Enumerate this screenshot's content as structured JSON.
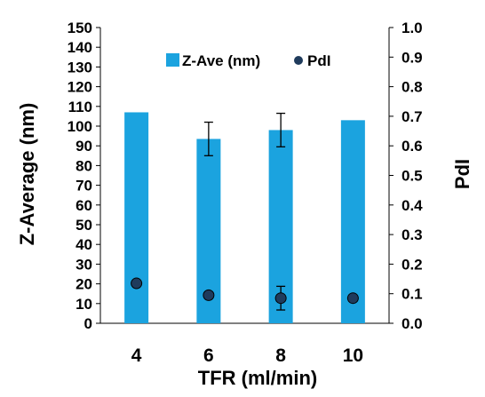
{
  "chart_data": {
    "type": "bar",
    "title": "",
    "xlabel": "TFR (ml/min)",
    "ylabel": "Z-Average (nm)",
    "y2label": "PdI",
    "categories": [
      "4",
      "6",
      "8",
      "10"
    ],
    "ylim": [
      0,
      150
    ],
    "ytick_step": 10,
    "y2lim": [
      0.0,
      1.0
    ],
    "y2tick_step": 0.1,
    "legend_position": "top-center",
    "colors": {
      "bar": "#1BA3DF",
      "point": "#1F3B5C",
      "error": "#000000"
    },
    "series": [
      {
        "name": "Z-Ave (nm)",
        "type": "bar",
        "axis": "left",
        "values": [
          107,
          93.5,
          98,
          103
        ],
        "errors": [
          null,
          8.5,
          8.5,
          null
        ]
      },
      {
        "name": "PdI",
        "type": "scatter",
        "axis": "right",
        "values": [
          0.135,
          0.095,
          0.085,
          0.085
        ],
        "errors": [
          null,
          null,
          0.04,
          null
        ]
      }
    ]
  }
}
